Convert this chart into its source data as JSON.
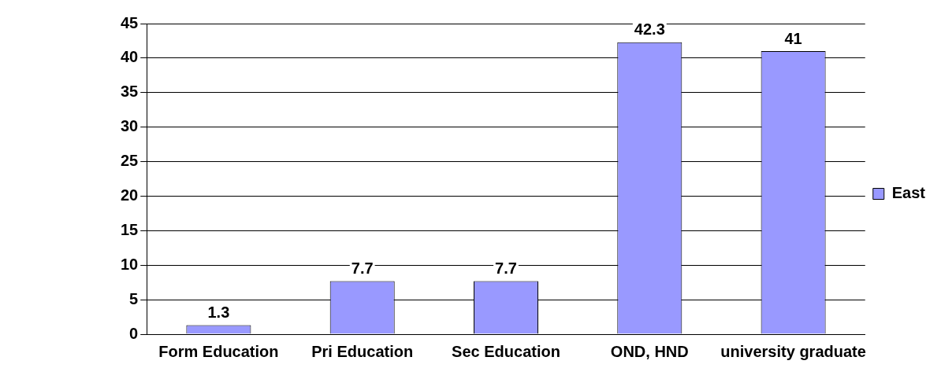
{
  "chart_data": {
    "type": "bar",
    "categories": [
      "Form Education",
      "Pri Education",
      "Sec Education",
      "OND, HND",
      "university graduate"
    ],
    "series": [
      {
        "name": "East",
        "color": "#9999ff",
        "values": [
          1.3,
          7.7,
          7.7,
          42.3,
          41
        ]
      }
    ],
    "ylim": [
      0,
      45
    ],
    "yticks": [
      0,
      5,
      10,
      15,
      20,
      25,
      30,
      35,
      40,
      45
    ],
    "grid": "y",
    "legend": "right",
    "data_labels": true
  }
}
